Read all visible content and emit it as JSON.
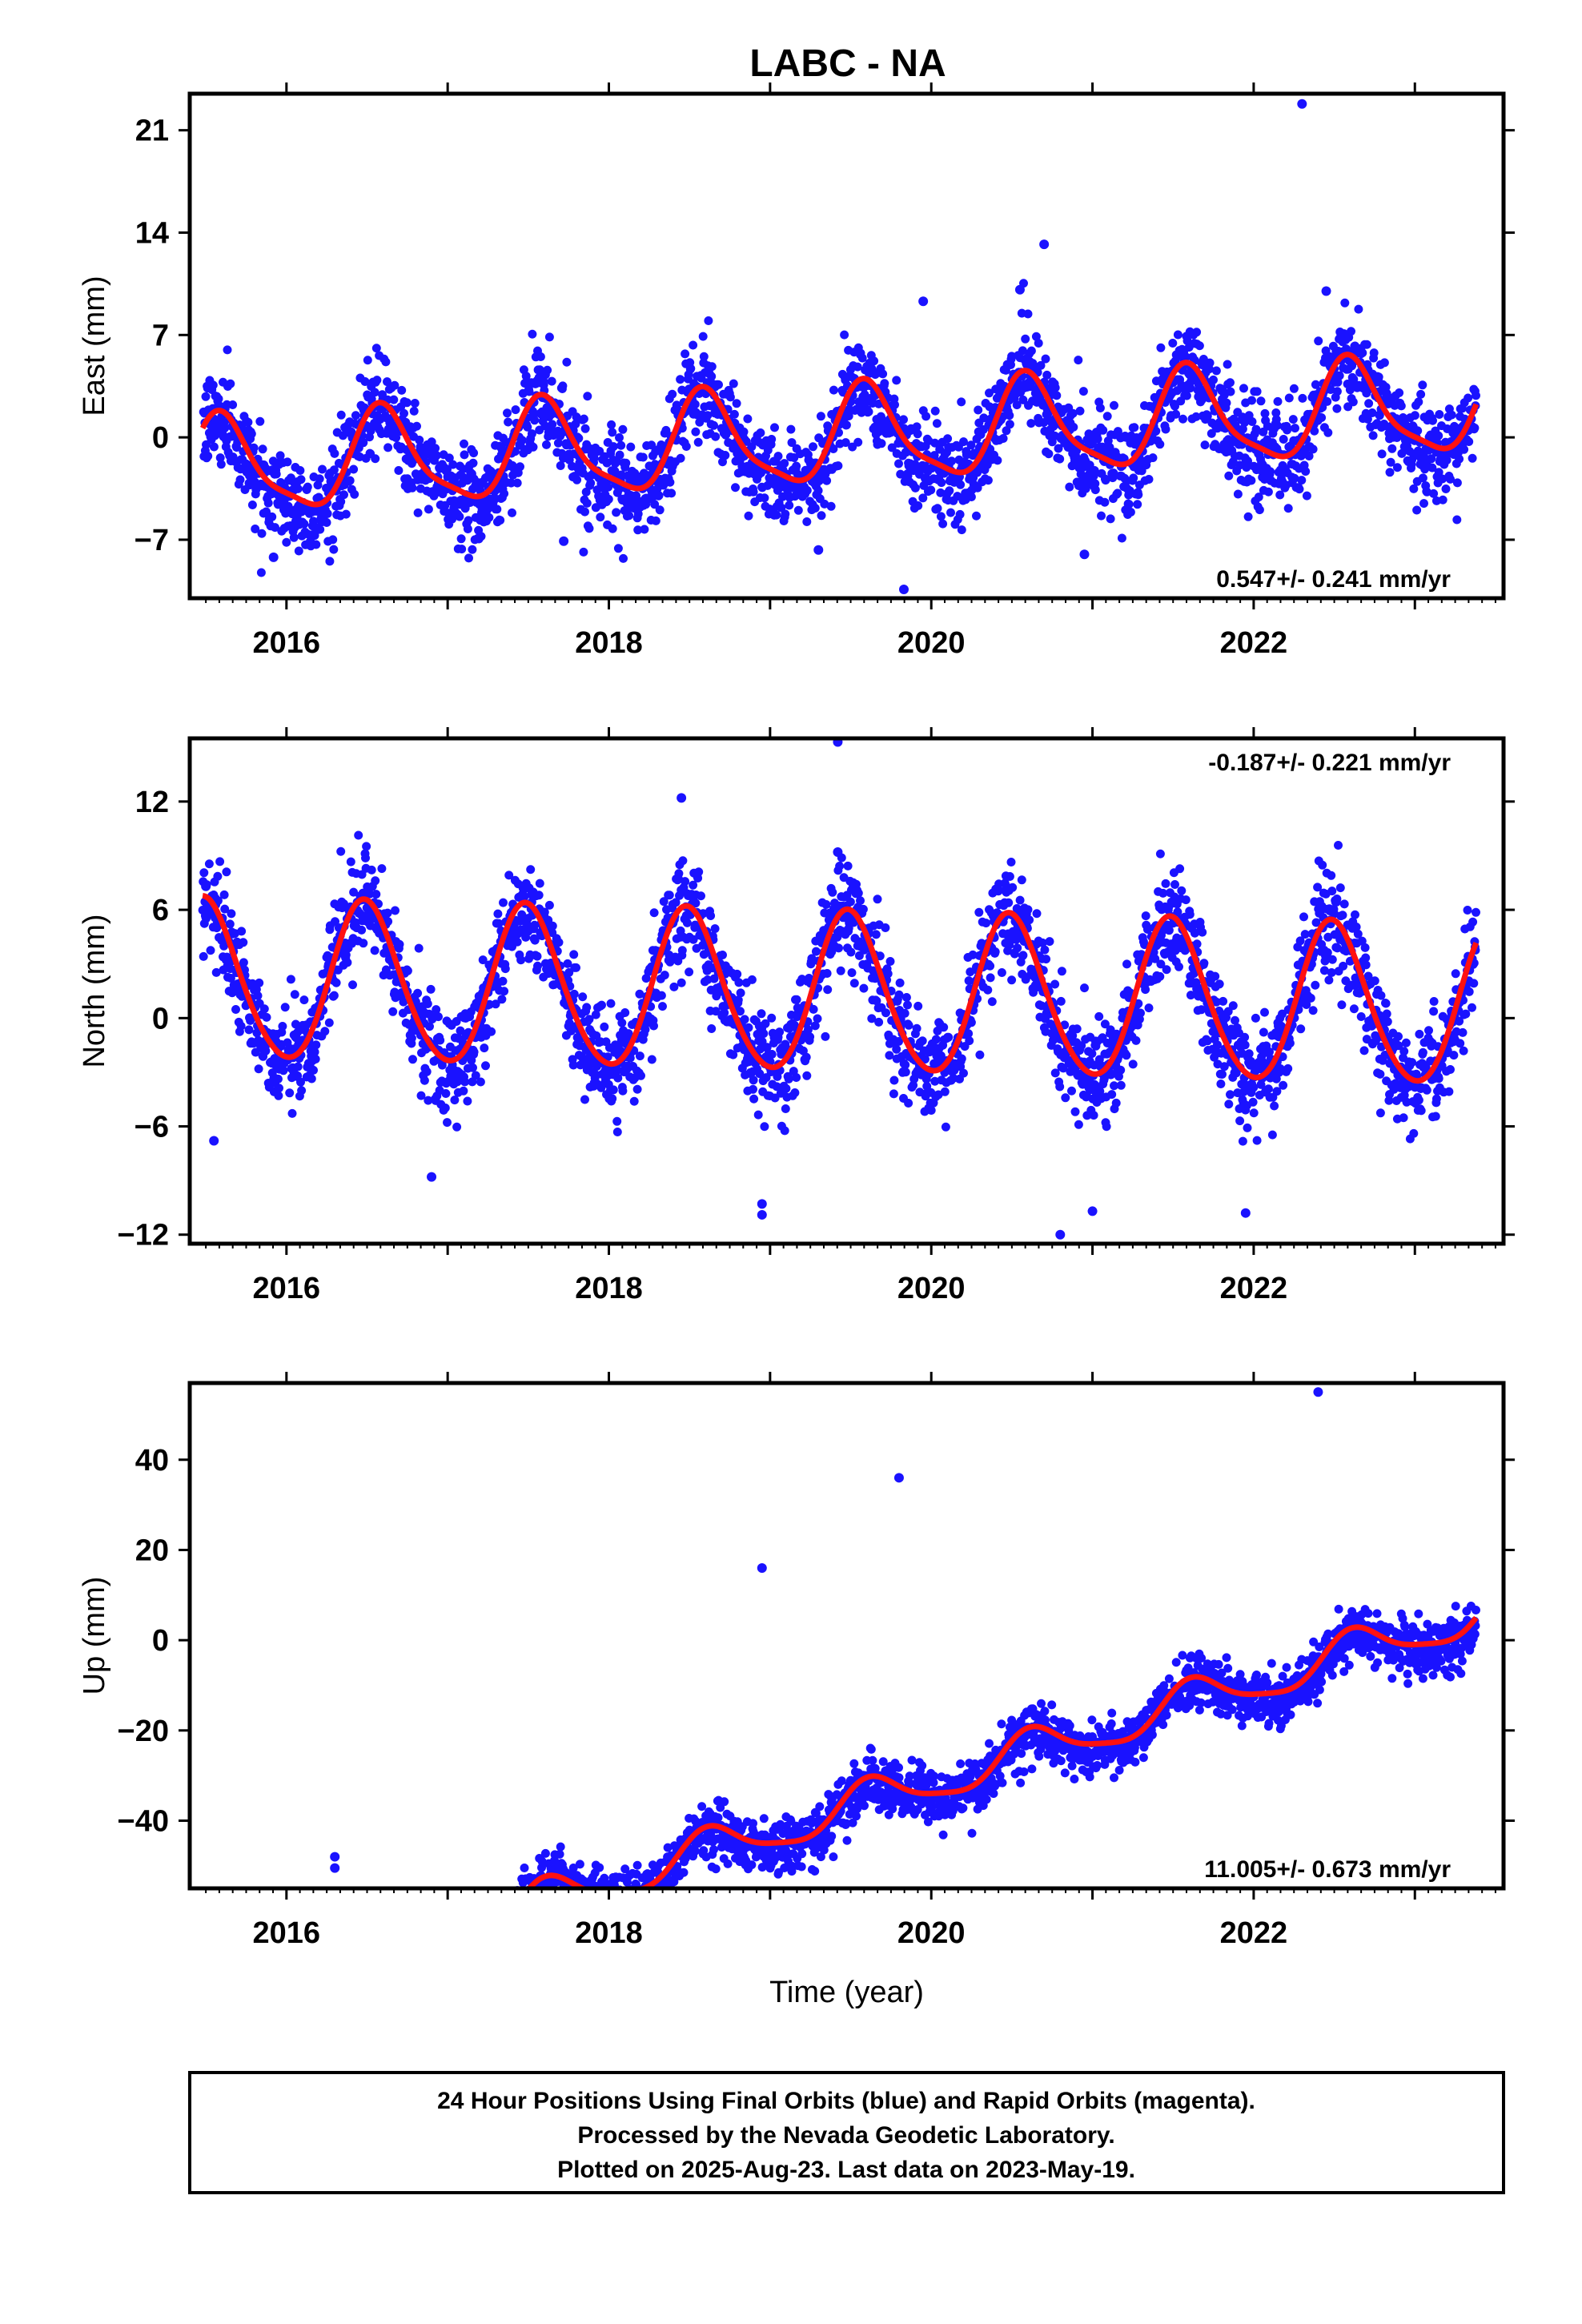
{
  "chart_data": {
    "type": "scatter",
    "title": "LABC - NA",
    "panels": [
      {
        "ylabel": "East (mm)",
        "yticks": [
          21,
          14,
          7,
          0,
          -7
        ],
        "ylim": [
          -11,
          23.5
        ],
        "xlim": [
          2015.4,
          2023.55
        ],
        "xticks": [
          2016,
          2018,
          2020,
          2022
        ],
        "rate_label": "0.547+/- 0.241 mm/yr",
        "rate_pos": "bottom-right",
        "trend": {
          "intercept": 0.0,
          "rate": 0.547,
          "annual_amp": 3.2,
          "annual_phase_day": 220,
          "semiannual_amp": 0.8,
          "noise": 1.6
        },
        "outliers": [
          [
            2022.3,
            22.8
          ],
          [
            2020.7,
            13.2
          ],
          [
            2020.55,
            10.1
          ],
          [
            2019.83,
            -10.4
          ],
          [
            2019.3,
            -7.7
          ],
          [
            2020.95,
            -8.0
          ],
          [
            2017.72,
            -7.1
          ],
          [
            2015.92,
            -8.2
          ],
          [
            2022.45,
            10.0
          ],
          [
            2019.95,
            9.3
          ]
        ]
      },
      {
        "ylabel": "North (mm)",
        "yticks": [
          12,
          6,
          0,
          -6,
          -12
        ],
        "ylim": [
          -12.5,
          15.5
        ],
        "xlim": [
          2015.4,
          2023.55
        ],
        "xticks": [
          2016,
          2018,
          2020,
          2022
        ],
        "rate_label": "-0.187+/- 0.221 mm/yr",
        "rate_pos": "top-right",
        "trend": {
          "intercept": 1.3,
          "rate": -0.187,
          "annual_amp": 4.4,
          "annual_phase_day": 180,
          "semiannual_amp": 0.4,
          "noise": 1.4
        },
        "outliers": [
          [
            2019.42,
            15.3
          ],
          [
            2018.45,
            12.2
          ],
          [
            2019.42,
            9.2
          ],
          [
            2015.55,
            -6.8
          ],
          [
            2016.9,
            -8.8
          ],
          [
            2018.95,
            -10.9
          ],
          [
            2018.95,
            -10.3
          ],
          [
            2020.8,
            -12.0
          ],
          [
            2021.0,
            -10.7
          ],
          [
            2021.95,
            -10.8
          ],
          [
            2015.5,
            7.3
          ]
        ]
      },
      {
        "ylabel": "Up (mm)",
        "yticks": [
          40,
          20,
          0,
          -20,
          -40
        ],
        "ylim": [
          -55,
          57
        ],
        "xlim": [
          2015.4,
          2023.55
        ],
        "xticks": [
          2016,
          2018,
          2020,
          2022
        ],
        "rate_label": "11.005+/- 0.673 mm/yr",
        "rate_pos": "bottom-right",
        "xlabel": "Time (year)",
        "trend": {
          "intercept": -38.0,
          "rate": 11.005,
          "annual_amp": 4.5,
          "annual_phase_day": 230,
          "semiannual_amp": 1.0,
          "noise": 3.0
        },
        "outliers": [
          [
            2019.8,
            36.0
          ],
          [
            2022.4,
            55.0
          ],
          [
            2018.95,
            16.0
          ],
          [
            2016.3,
            -50.5
          ],
          [
            2016.3,
            -48.0
          ]
        ]
      }
    ],
    "series": [
      {
        "name": "Final Orbits (blue)",
        "color": "#1a12ff"
      },
      {
        "name": "Model fit",
        "color": "#ff1111"
      }
    ],
    "grid": false
  },
  "footer": {
    "line1": "24 Hour Positions Using Final Orbits (blue) and Rapid Orbits (magenta).",
    "line2": "Processed by the Nevada Geodetic Laboratory.",
    "line3": "Plotted on 2025-Aug-23. Last data on 2023-May-19."
  },
  "colors": {
    "points": "#1a12ff",
    "fit": "#ff1111",
    "frame": "#000000"
  }
}
